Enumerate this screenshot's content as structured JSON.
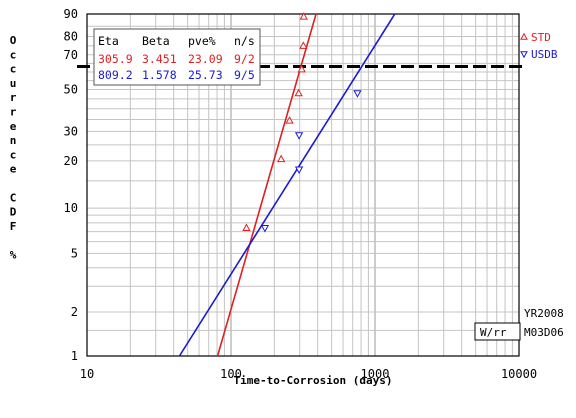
{
  "chart_data": {
    "type": "scatter",
    "xscale": "log",
    "yscale": "weibull-probability",
    "xlim": [
      10,
      10000
    ],
    "ylim": [
      1,
      90
    ],
    "grid": true,
    "xlabel": "Time-to-Corrosion (days)",
    "ylabel": "Occurrence CDF %",
    "x_ticks": [
      "10",
      "100",
      "1000",
      "10000"
    ],
    "y_ticks": [
      1,
      2,
      5,
      10,
      20,
      30,
      50,
      70,
      80,
      90
    ],
    "reference_line_y": 63.2,
    "legend_position": "right",
    "table": {
      "headers": [
        "Eta",
        "Beta",
        "pve%",
        "n/s"
      ],
      "rows": [
        {
          "eta": "305.9",
          "beta": "3.451",
          "pve": "23.09",
          "ns": "9/2",
          "color": "#e02020"
        },
        {
          "eta": "809.2",
          "beta": "1.578",
          "pve": "25.73",
          "ns": "9/5",
          "color": "#1a1ad0"
        }
      ]
    },
    "series": [
      {
        "name": "STD",
        "color": "#e02020",
        "marker": "triangle-up",
        "eta": 305.9,
        "beta": 3.451,
        "points": [
          [
            128,
            7.4
          ],
          [
            223,
            20.5
          ],
          [
            255,
            34.5
          ],
          [
            295,
            48
          ],
          [
            310,
            61.5
          ],
          [
            318,
            75
          ],
          [
            320,
            89
          ]
        ]
      },
      {
        "name": "USDB",
        "color": "#1a1ad0",
        "marker": "triangle-down",
        "eta": 809.2,
        "beta": 1.578,
        "points": [
          [
            172,
            7.4
          ],
          [
            297,
            17.7
          ],
          [
            297,
            28.5
          ],
          [
            755,
            48
          ]
        ]
      }
    ]
  },
  "side_text": {
    "date_code": "YR2008",
    "method": "W/rr",
    "id_code": "M03D06"
  }
}
